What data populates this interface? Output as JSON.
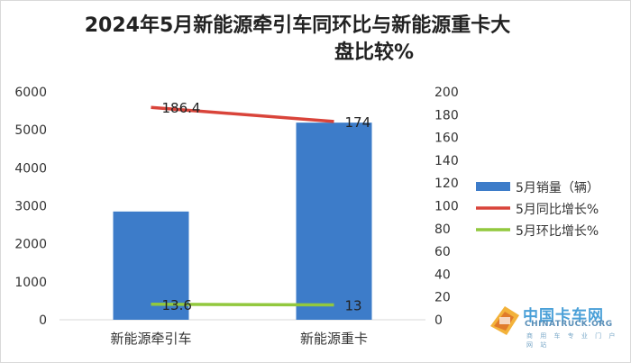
{
  "title_line1": "2024年5月新能源牵引车同环比与新能源重卡大",
  "title_line2": "盘比较%",
  "chart_data": {
    "type": "bar",
    "categories": [
      "新能源牵引车",
      "新能源重卡"
    ],
    "series": [
      {
        "name": "5月销量（辆）",
        "kind": "bar",
        "axis": "left",
        "values": [
          2850,
          5190
        ],
        "color": "#3d7cc9"
      },
      {
        "name": "5月同比增长%",
        "kind": "line",
        "axis": "right",
        "values": [
          186.4,
          174
        ],
        "labels": [
          "186.4",
          "174"
        ],
        "color": "#d9443a"
      },
      {
        "name": "5月环比增长%",
        "kind": "line",
        "axis": "right",
        "values": [
          13.6,
          13
        ],
        "labels": [
          "13.6",
          "13"
        ],
        "color": "#92c83e"
      }
    ],
    "ylim_left": [
      0,
      6000
    ],
    "yticks_left": [
      0,
      1000,
      2000,
      3000,
      4000,
      5000,
      6000
    ],
    "ylim_right": [
      0,
      200
    ],
    "yticks_right": [
      0,
      20,
      40,
      60,
      80,
      100,
      120,
      140,
      160,
      180,
      200
    ],
    "grid": false,
    "legend_position": "right"
  },
  "watermark": {
    "cn": "中国卡车网",
    "en": "CHINATRUCK.ORG",
    "sub": "商 用 车 专 业 门 户 网 站"
  }
}
